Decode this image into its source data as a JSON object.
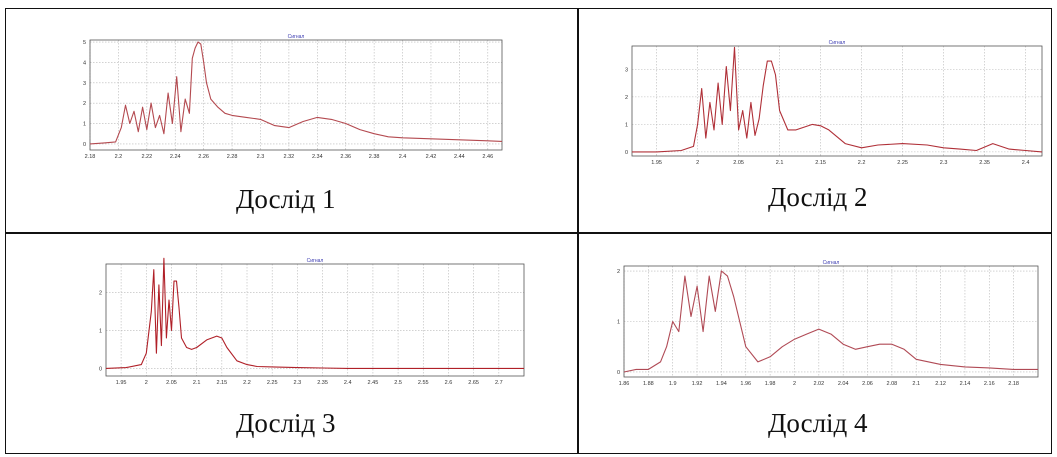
{
  "captions": [
    "Дослід 1",
    "Дослід 2",
    "Дослід 3",
    "Дослід 4"
  ],
  "chart_data": [
    {
      "type": "line",
      "title": "Сигнал",
      "line_color": "#b44a50",
      "xlim": [
        2.18,
        2.47
      ],
      "ylim": [
        -0.3,
        5.1
      ],
      "xticks": [
        2.18,
        2.2,
        2.22,
        2.24,
        2.26,
        2.28,
        2.3,
        2.32,
        2.34,
        2.36,
        2.38,
        2.4,
        2.42,
        2.44,
        2.46
      ],
      "xtick_labels": [
        "2.18",
        "2.2",
        "2.22",
        "2.24",
        "2.26",
        "2.28",
        "2.3",
        "2.32",
        "2.34",
        "2.36",
        "2.38",
        "2.4",
        "2.42",
        "2.44",
        "2.46"
      ],
      "yticks": [
        0,
        1,
        2,
        3,
        4,
        5
      ],
      "ytick_labels": [
        "0",
        "1",
        "2",
        "3",
        "4",
        "5"
      ],
      "grid": true,
      "x": [
        2.18,
        2.19,
        2.198,
        2.202,
        2.205,
        2.208,
        2.211,
        2.214,
        2.217,
        2.22,
        2.223,
        2.226,
        2.229,
        2.232,
        2.235,
        2.238,
        2.241,
        2.244,
        2.247,
        2.25,
        2.252,
        2.254,
        2.256,
        2.258,
        2.26,
        2.262,
        2.265,
        2.27,
        2.275,
        2.28,
        2.29,
        2.3,
        2.31,
        2.32,
        2.33,
        2.34,
        2.35,
        2.36,
        2.37,
        2.38,
        2.39,
        2.4,
        2.42,
        2.44,
        2.46,
        2.47
      ],
      "y": [
        0.0,
        0.05,
        0.1,
        0.8,
        1.9,
        1.0,
        1.6,
        0.6,
        1.8,
        0.7,
        2.0,
        0.8,
        1.4,
        0.5,
        2.5,
        1.0,
        3.3,
        0.6,
        2.2,
        1.5,
        4.2,
        4.7,
        5.0,
        4.9,
        4.0,
        3.0,
        2.2,
        1.8,
        1.5,
        1.4,
        1.3,
        1.2,
        0.9,
        0.8,
        1.1,
        1.3,
        1.2,
        1.0,
        0.7,
        0.5,
        0.35,
        0.3,
        0.25,
        0.2,
        0.15,
        0.12
      ]
    },
    {
      "type": "line",
      "title": "Сигнал",
      "line_color": "#b03038",
      "xlim": [
        1.92,
        2.42
      ],
      "ylim": [
        -0.15,
        3.85
      ],
      "xticks": [
        1.95,
        2,
        2.05,
        2.1,
        2.15,
        2.2,
        2.25,
        2.3,
        2.35,
        2.4
      ],
      "xtick_labels": [
        "1.95",
        "2",
        "2.05",
        "2.1",
        "2.15",
        "2.2",
        "2.25",
        "2.3",
        "2.35",
        "2.4"
      ],
      "yticks": [
        0,
        1,
        2,
        3
      ],
      "ytick_labels": [
        "0",
        "1",
        "2",
        "3"
      ],
      "grid": true,
      "x": [
        1.92,
        1.95,
        1.98,
        1.995,
        2.0,
        2.005,
        2.01,
        2.015,
        2.02,
        2.025,
        2.03,
        2.035,
        2.04,
        2.045,
        2.05,
        2.055,
        2.06,
        2.065,
        2.07,
        2.075,
        2.08,
        2.085,
        2.09,
        2.095,
        2.1,
        2.11,
        2.12,
        2.13,
        2.14,
        2.15,
        2.16,
        2.18,
        2.2,
        2.22,
        2.25,
        2.28,
        2.3,
        2.32,
        2.34,
        2.36,
        2.38,
        2.4,
        2.42
      ],
      "y": [
        0.0,
        0.0,
        0.05,
        0.2,
        1.0,
        2.3,
        0.5,
        1.8,
        0.8,
        2.5,
        1.0,
        3.1,
        1.5,
        3.8,
        0.8,
        1.5,
        0.5,
        1.8,
        0.6,
        1.2,
        2.4,
        3.3,
        3.3,
        2.8,
        1.5,
        0.8,
        0.8,
        0.9,
        1.0,
        0.95,
        0.8,
        0.3,
        0.15,
        0.25,
        0.3,
        0.25,
        0.15,
        0.1,
        0.05,
        0.3,
        0.1,
        0.05,
        0.0
      ]
    },
    {
      "type": "line",
      "title": "Сигнал",
      "line_color": "#b02028",
      "xlim": [
        1.92,
        2.75
      ],
      "ylim": [
        -0.2,
        2.75
      ],
      "xticks": [
        1.95,
        2,
        2.05,
        2.1,
        2.15,
        2.2,
        2.25,
        2.3,
        2.35,
        2.4,
        2.45,
        2.5,
        2.55,
        2.6,
        2.65,
        2.7
      ],
      "xtick_labels": [
        "1.95",
        "2",
        "2.05",
        "2.1",
        "2.15",
        "2.2",
        "2.25",
        "2.3",
        "2.35",
        "2.4",
        "2.45",
        "2.5",
        "2.55",
        "2.6",
        "2.65",
        "2.7"
      ],
      "yticks": [
        0,
        1,
        2
      ],
      "ytick_labels": [
        "0",
        "1",
        "2"
      ],
      "grid": true,
      "x": [
        1.92,
        1.96,
        1.99,
        2.0,
        2.01,
        2.015,
        2.02,
        2.025,
        2.03,
        2.035,
        2.04,
        2.045,
        2.05,
        2.055,
        2.06,
        2.065,
        2.07,
        2.08,
        2.09,
        2.1,
        2.12,
        2.14,
        2.15,
        2.16,
        2.18,
        2.2,
        2.22,
        2.25,
        2.3,
        2.35,
        2.4,
        2.5,
        2.6,
        2.7,
        2.75
      ],
      "y": [
        0.0,
        0.02,
        0.1,
        0.4,
        1.5,
        2.6,
        0.4,
        2.2,
        0.6,
        2.9,
        0.8,
        1.8,
        1.0,
        2.3,
        2.3,
        1.6,
        0.8,
        0.55,
        0.5,
        0.55,
        0.75,
        0.85,
        0.8,
        0.55,
        0.2,
        0.1,
        0.05,
        0.04,
        0.02,
        0.01,
        0.0,
        0.0,
        0.0,
        0.0,
        0.0
      ]
    },
    {
      "type": "line",
      "title": "Сигнал",
      "line_color": "#b04a55",
      "xlim": [
        1.86,
        2.2
      ],
      "ylim": [
        -0.1,
        2.1
      ],
      "xticks": [
        1.86,
        1.88,
        1.9,
        1.92,
        1.94,
        1.96,
        1.98,
        2,
        2.02,
        2.04,
        2.06,
        2.08,
        2.1,
        2.12,
        2.14,
        2.16,
        2.18
      ],
      "xtick_labels": [
        "1.86",
        "1.88",
        "1.9",
        "1.92",
        "1.94",
        "1.96",
        "1.98",
        "2",
        "2.02",
        "2.04",
        "2.06",
        "2.08",
        "2.1",
        "2.12",
        "2.14",
        "2.16",
        "2.18"
      ],
      "yticks": [
        0,
        1,
        2
      ],
      "ytick_labels": [
        "0",
        "1",
        "2"
      ],
      "grid": true,
      "x": [
        1.86,
        1.87,
        1.88,
        1.89,
        1.895,
        1.9,
        1.905,
        1.91,
        1.915,
        1.92,
        1.925,
        1.93,
        1.935,
        1.94,
        1.945,
        1.95,
        1.96,
        1.97,
        1.98,
        1.99,
        2.0,
        2.01,
        2.02,
        2.03,
        2.04,
        2.05,
        2.06,
        2.07,
        2.08,
        2.09,
        2.1,
        2.12,
        2.14,
        2.16,
        2.18,
        2.2
      ],
      "y": [
        0.0,
        0.05,
        0.05,
        0.2,
        0.5,
        1.0,
        0.8,
        1.9,
        1.1,
        1.7,
        0.8,
        1.9,
        1.2,
        2.0,
        1.9,
        1.5,
        0.5,
        0.2,
        0.3,
        0.5,
        0.65,
        0.75,
        0.85,
        0.75,
        0.55,
        0.45,
        0.5,
        0.55,
        0.55,
        0.45,
        0.25,
        0.15,
        0.1,
        0.08,
        0.05,
        0.05
      ]
    }
  ]
}
